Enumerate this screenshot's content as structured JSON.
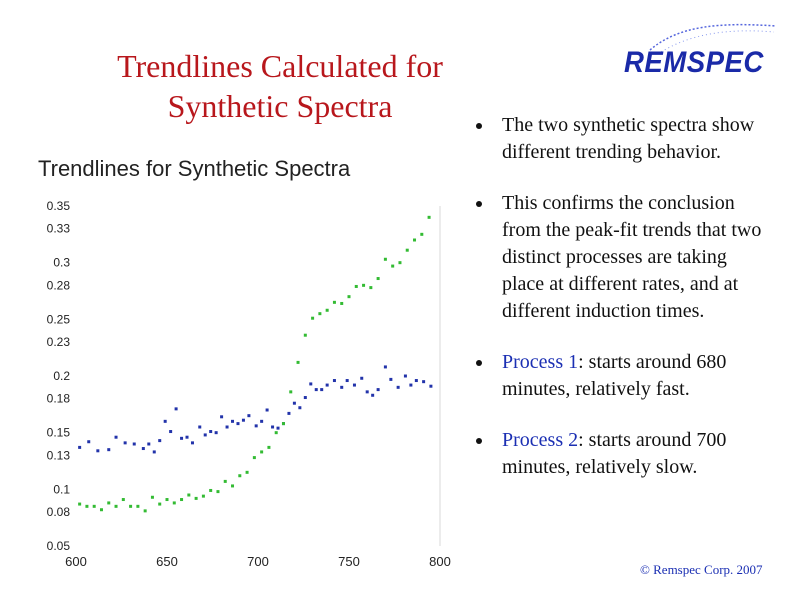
{
  "slide": {
    "title_line1": "Trendlines Calculated for",
    "title_line2": "Synthetic Spectra",
    "logo_text": "REMSPEC",
    "copyright": "© Remspec Corp. 2007"
  },
  "bullets": [
    {
      "text": "The two synthetic spectra show different trending behavior."
    },
    {
      "text": "This confirms the conclusion from the peak-fit trends that two distinct processes are taking place at different rates, and at different induction times."
    },
    {
      "label": "Process 1",
      "rest": ": starts around 680 minutes, relatively fast."
    },
    {
      "label": "Process 2",
      "rest": ": starts around 700 minutes, relatively slow."
    }
  ],
  "colors": {
    "title": "#b8171c",
    "series_blue": "#2233aa",
    "series_green": "#33bb33",
    "highlight": "#1b2fb3"
  },
  "chart_data": {
    "type": "scatter",
    "title": "Trendlines for Synthetic Spectra",
    "xlabel": "",
    "ylabel": "",
    "xlim": [
      600,
      800
    ],
    "ylim": [
      0.05,
      0.35
    ],
    "x_ticks": [
      "600",
      "650",
      "700",
      "750",
      "800"
    ],
    "y_ticks": [
      "0.05",
      "0.08",
      "0.1",
      "0.13",
      "0.15",
      "0.18",
      "0.2",
      "0.23",
      "0.25",
      "0.28",
      "0.3",
      "0.33",
      "0.35"
    ],
    "grid": false,
    "series": [
      {
        "color": "blue",
        "points": [
          [
            602,
            0.137
          ],
          [
            607,
            0.142
          ],
          [
            612,
            0.134
          ],
          [
            618,
            0.135
          ],
          [
            622,
            0.146
          ],
          [
            627,
            0.141
          ],
          [
            632,
            0.14
          ],
          [
            637,
            0.136
          ],
          [
            640,
            0.14
          ],
          [
            643,
            0.133
          ],
          [
            646,
            0.143
          ],
          [
            649,
            0.16
          ],
          [
            652,
            0.151
          ],
          [
            655,
            0.171
          ],
          [
            658,
            0.145
          ],
          [
            661,
            0.146
          ],
          [
            664,
            0.141
          ],
          [
            668,
            0.155
          ],
          [
            671,
            0.148
          ],
          [
            674,
            0.151
          ],
          [
            677,
            0.15
          ],
          [
            680,
            0.164
          ],
          [
            683,
            0.155
          ],
          [
            686,
            0.16
          ],
          [
            689,
            0.158
          ],
          [
            692,
            0.161
          ],
          [
            695,
            0.165
          ],
          [
            699,
            0.156
          ],
          [
            702,
            0.16
          ],
          [
            705,
            0.17
          ],
          [
            708,
            0.155
          ],
          [
            711,
            0.154
          ],
          [
            714,
            0.158
          ],
          [
            717,
            0.167
          ],
          [
            720,
            0.176
          ],
          [
            723,
            0.172
          ],
          [
            726,
            0.181
          ],
          [
            729,
            0.193
          ],
          [
            732,
            0.188
          ],
          [
            735,
            0.188
          ],
          [
            738,
            0.192
          ],
          [
            742,
            0.196
          ],
          [
            746,
            0.19
          ],
          [
            749,
            0.196
          ],
          [
            753,
            0.192
          ],
          [
            757,
            0.198
          ],
          [
            760,
            0.186
          ],
          [
            763,
            0.183
          ],
          [
            766,
            0.188
          ],
          [
            770,
            0.208
          ],
          [
            773,
            0.197
          ],
          [
            777,
            0.19
          ],
          [
            781,
            0.2
          ],
          [
            784,
            0.192
          ],
          [
            787,
            0.196
          ],
          [
            791,
            0.195
          ],
          [
            795,
            0.191
          ]
        ]
      },
      {
        "color": "green",
        "points": [
          [
            602,
            0.087
          ],
          [
            606,
            0.085
          ],
          [
            610,
            0.085
          ],
          [
            614,
            0.082
          ],
          [
            618,
            0.088
          ],
          [
            622,
            0.085
          ],
          [
            626,
            0.091
          ],
          [
            630,
            0.085
          ],
          [
            634,
            0.085
          ],
          [
            638,
            0.081
          ],
          [
            642,
            0.093
          ],
          [
            646,
            0.087
          ],
          [
            650,
            0.091
          ],
          [
            654,
            0.088
          ],
          [
            658,
            0.091
          ],
          [
            662,
            0.095
          ],
          [
            666,
            0.092
          ],
          [
            670,
            0.094
          ],
          [
            674,
            0.099
          ],
          [
            678,
            0.098
          ],
          [
            682,
            0.107
          ],
          [
            686,
            0.103
          ],
          [
            690,
            0.112
          ],
          [
            694,
            0.115
          ],
          [
            698,
            0.128
          ],
          [
            702,
            0.133
          ],
          [
            706,
            0.137
          ],
          [
            710,
            0.15
          ],
          [
            714,
            0.158
          ],
          [
            718,
            0.186
          ],
          [
            722,
            0.212
          ],
          [
            726,
            0.236
          ],
          [
            730,
            0.251
          ],
          [
            734,
            0.255
          ],
          [
            738,
            0.258
          ],
          [
            742,
            0.265
          ],
          [
            746,
            0.264
          ],
          [
            750,
            0.27
          ],
          [
            754,
            0.279
          ],
          [
            758,
            0.28
          ],
          [
            762,
            0.278
          ],
          [
            766,
            0.286
          ],
          [
            770,
            0.303
          ],
          [
            774,
            0.297
          ],
          [
            778,
            0.3
          ],
          [
            782,
            0.311
          ],
          [
            786,
            0.32
          ],
          [
            790,
            0.325
          ],
          [
            794,
            0.34
          ]
        ]
      }
    ]
  }
}
